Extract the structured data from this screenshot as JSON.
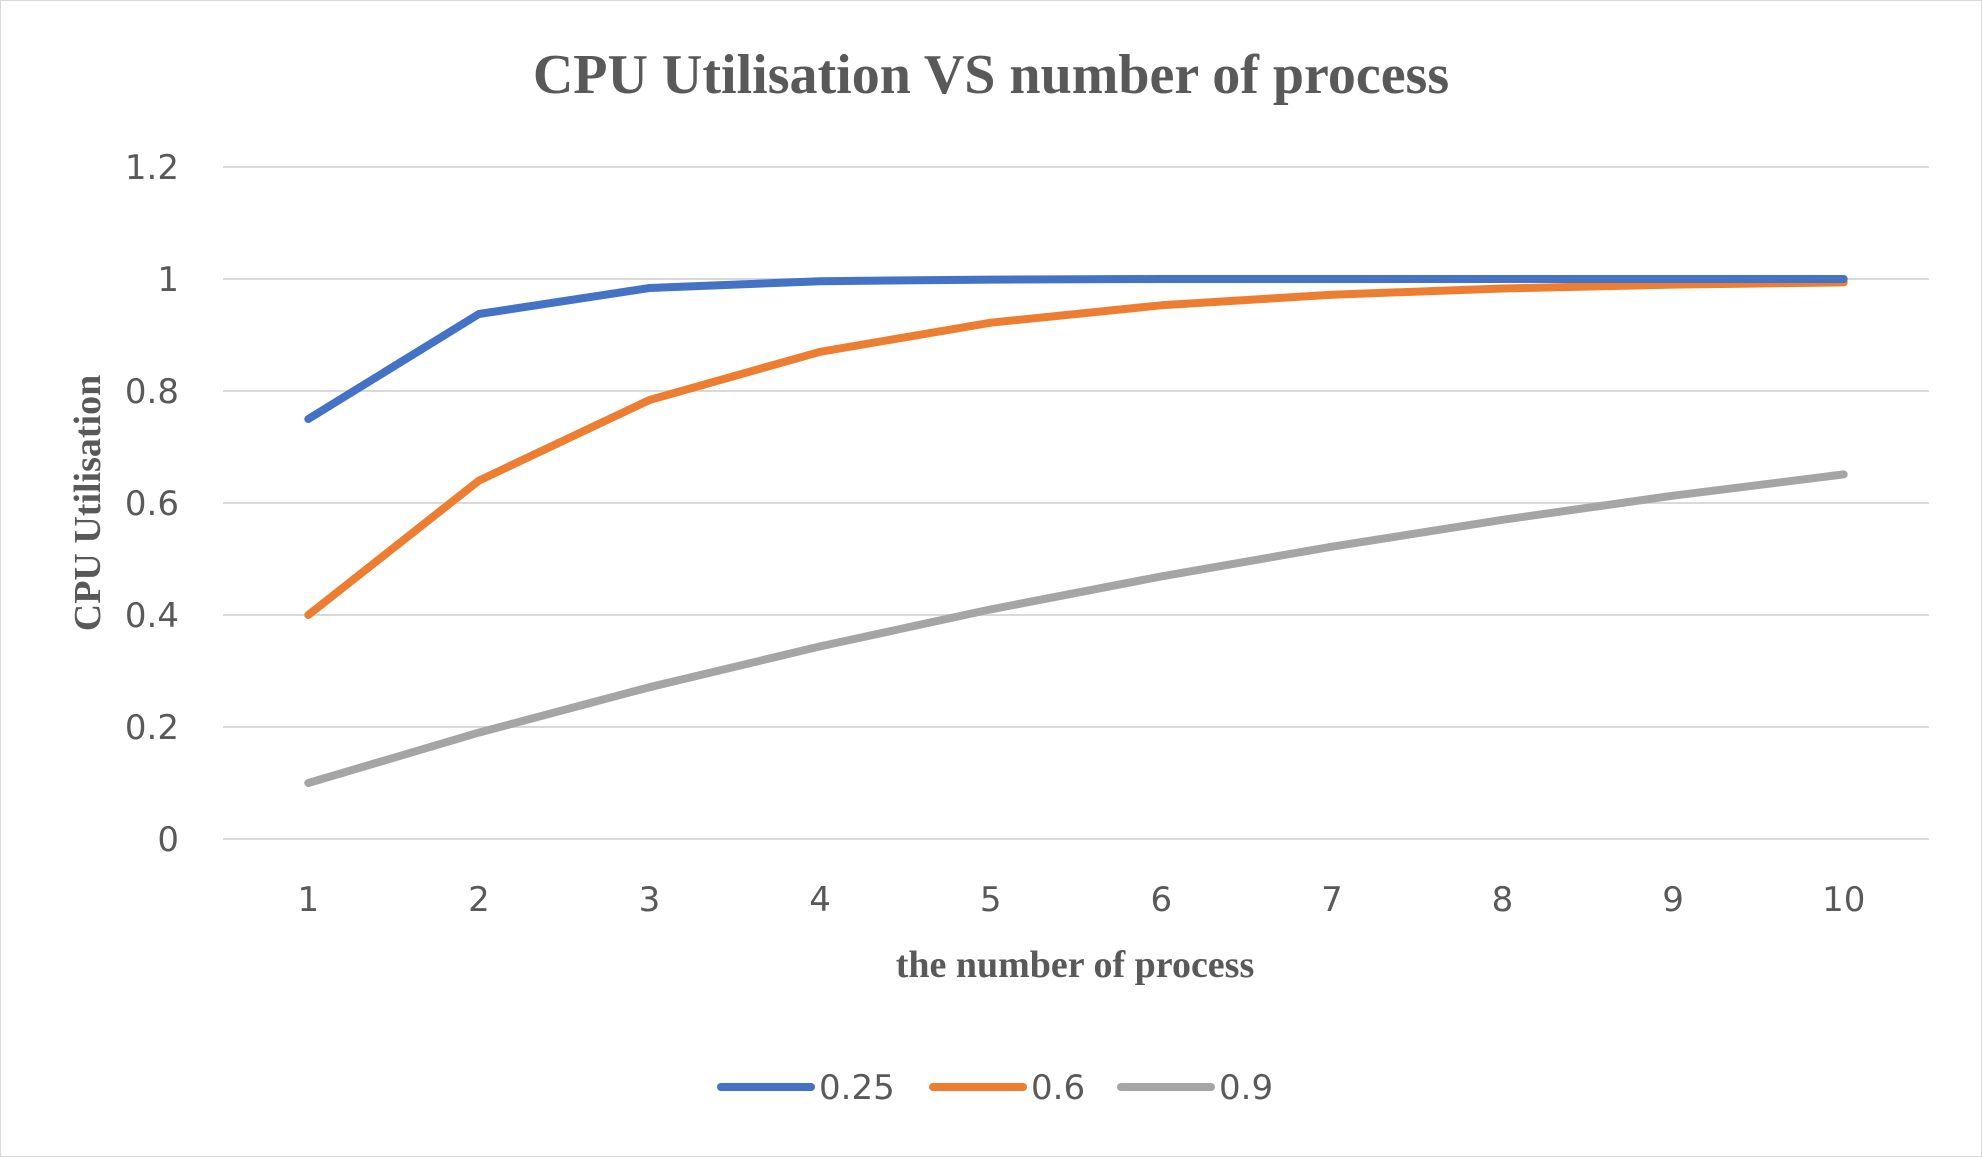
{
  "chart_data": {
    "type": "line",
    "title": "CPU Utilisation VS number of process",
    "xlabel": "the number of process",
    "ylabel": "CPU Utilisation",
    "categories": [
      "1",
      "2",
      "3",
      "4",
      "5",
      "6",
      "7",
      "8",
      "9",
      "10"
    ],
    "y_ticks": [
      "0",
      "0.2",
      "0.4",
      "0.6",
      "0.8",
      "1",
      "1.2"
    ],
    "ylim": [
      0,
      1.2
    ],
    "grid": "horizontal",
    "legend_position": "bottom",
    "series": [
      {
        "name": "0.25",
        "color": "#4472C4",
        "values": [
          0.75,
          0.9375,
          0.984,
          0.996,
          0.999,
          1.0,
          1.0,
          1.0,
          1.0,
          1.0
        ]
      },
      {
        "name": "0.6",
        "color": "#ED7D31",
        "values": [
          0.4,
          0.64,
          0.784,
          0.87,
          0.922,
          0.953,
          0.972,
          0.983,
          0.99,
          0.994
        ]
      },
      {
        "name": "0.9",
        "color": "#A5A5A5",
        "values": [
          0.1,
          0.19,
          0.271,
          0.344,
          0.41,
          0.469,
          0.522,
          0.57,
          0.613,
          0.651
        ]
      }
    ],
    "gridline_color": "#d9d9d9"
  }
}
